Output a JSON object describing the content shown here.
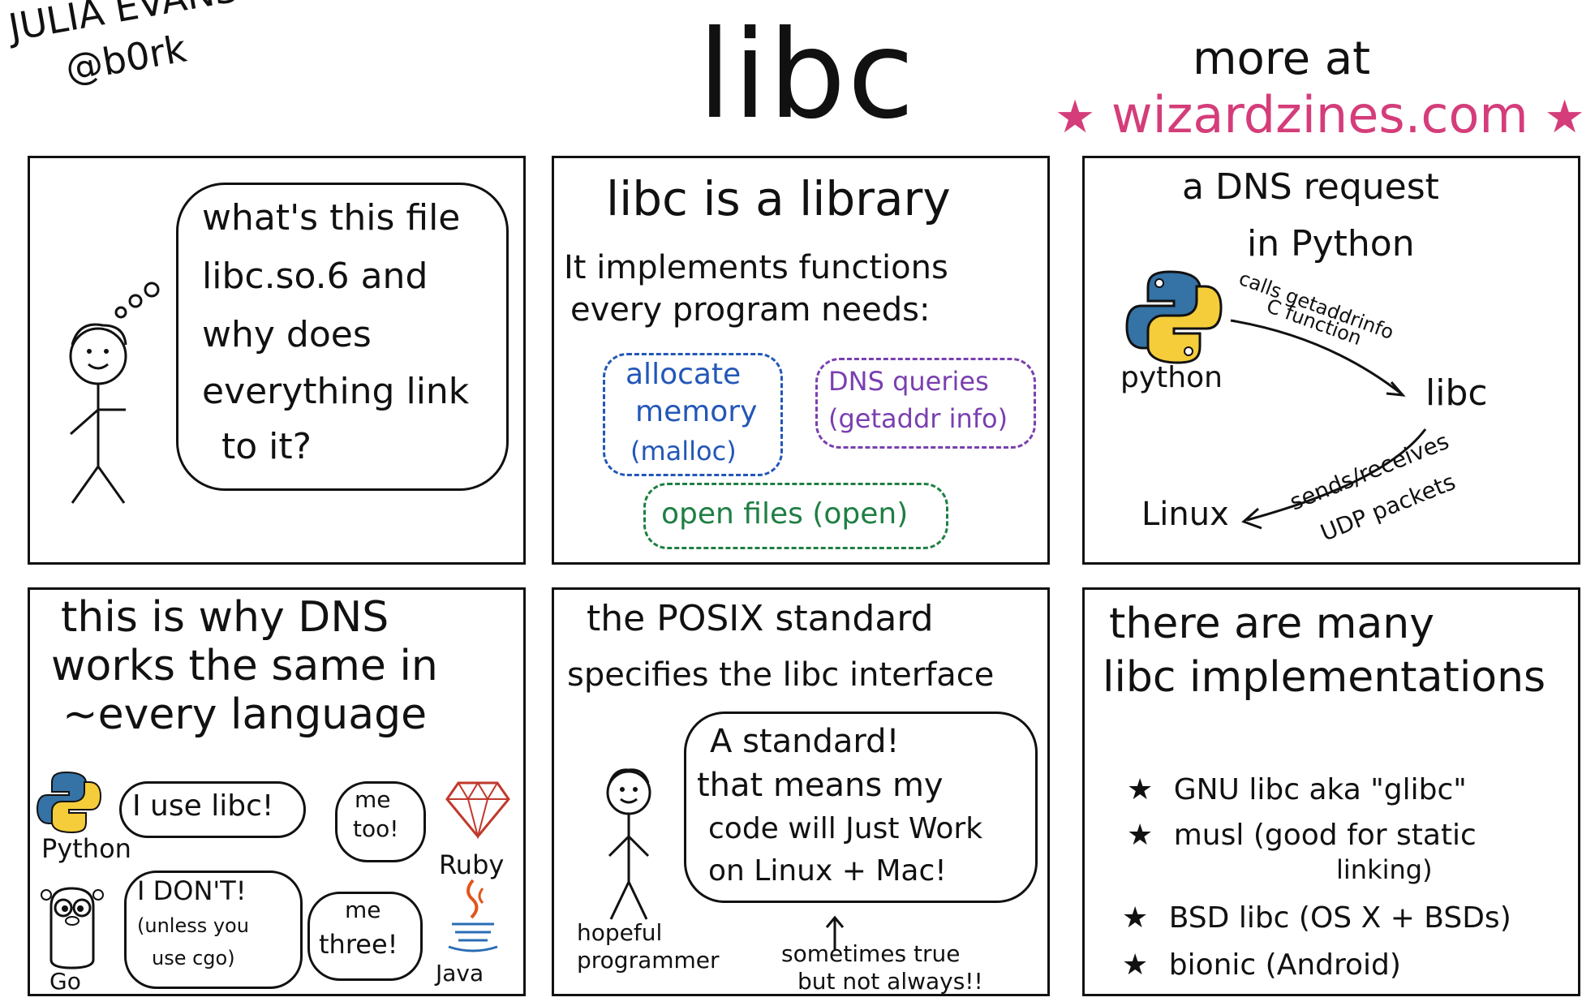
{
  "header": {
    "author_name": "JULIA EVANS",
    "author_handle": "@b0rk",
    "title": "libc",
    "more_at": "more at",
    "site": "wizardzines.com",
    "colors": {
      "accent": "#d43d7a"
    }
  },
  "panel1": {
    "thought_lines": [
      "what's this file",
      "libc.so.6 and",
      "why does",
      "everything link",
      "to it?"
    ]
  },
  "panel2": {
    "heading": "libc is a library",
    "intro_lines": [
      "It implements functions",
      "every program needs:"
    ],
    "box_allocate": [
      "allocate",
      "memory",
      "(malloc)"
    ],
    "box_dns": [
      "DNS queries",
      "(getaddr info)"
    ],
    "box_open": "open files  (open)"
  },
  "panel3": {
    "heading_lines": [
      "a DNS request",
      "in Python"
    ],
    "python_label": "python",
    "arrow1_label": [
      "calls getaddrinfo",
      "C function"
    ],
    "libc_label": "libc",
    "linux_label": "Linux",
    "arrow2_label": [
      "sends/receives",
      "UDP packets"
    ]
  },
  "panel4": {
    "heading_lines": [
      "this is why DNS",
      "works the same in",
      "~every language"
    ],
    "python_label": "Python",
    "python_says": "I use libc!",
    "ruby_label": "Ruby",
    "ruby_says": [
      "me",
      "too!"
    ],
    "go_label": "Go",
    "go_says": [
      "I DON'T!",
      "(unless you",
      "use cgo)"
    ],
    "java_label": "Java",
    "java_says": [
      "me",
      "three!"
    ]
  },
  "panel5": {
    "heading_lines": [
      "the POSIX standard",
      "specifies the libc interface"
    ],
    "speech_lines": [
      "A standard!",
      "that means my",
      "code will Just Work",
      "on Linux + Mac!"
    ],
    "person_label": [
      "hopeful",
      "programmer"
    ],
    "note_lines": [
      "sometimes true",
      "but not always!!"
    ]
  },
  "panel6": {
    "heading_lines": [
      "there are many",
      "libc implementations"
    ],
    "items": [
      "GNU libc  aka \"glibc\"",
      "musl  (good for static",
      "linking)",
      "BSD libc  (OS X + BSDs)",
      "bionic  (Android)"
    ]
  }
}
